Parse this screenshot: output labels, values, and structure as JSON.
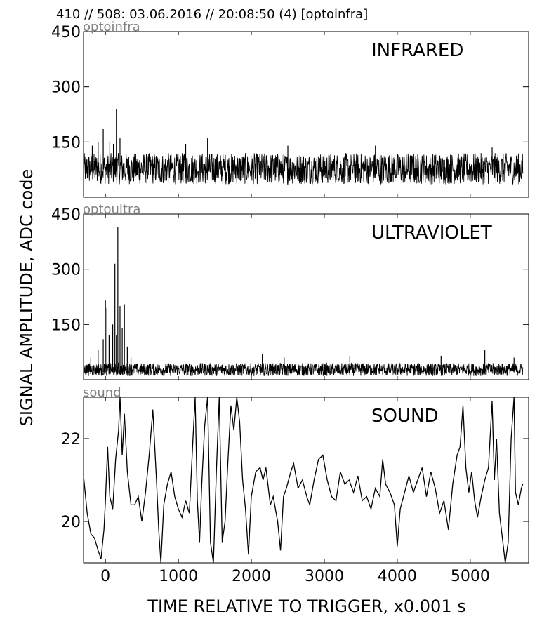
{
  "header": "410 // 508:   03.06.2016 // 20:08:50 (4)  [optoinfra]",
  "ylabel": "SIGNAL AMPLITUDE,  ADC code",
  "xlabel": "TIME RELATIVE TO TRIGGER,   x0.001 s",
  "x_tick_labels": [
    "0",
    "1000",
    "2000",
    "3000",
    "4000",
    "5000"
  ],
  "colors": {
    "trace": "#000000",
    "channel_label": "#808080",
    "axes": "#000000"
  },
  "chart_data": [
    {
      "type": "line",
      "channel": "optoinfra",
      "title": "INFRARED",
      "xlim": [
        -300,
        5800
      ],
      "ylim": [
        0,
        450
      ],
      "x_ticks": [
        0,
        1000,
        2000,
        3000,
        4000,
        5000
      ],
      "y_ticks": [
        150,
        300,
        450
      ],
      "y_tick_labels": [
        "150",
        "300",
        "450"
      ],
      "x_range": [
        -300,
        5720
      ],
      "baseline": 75,
      "noise_band": [
        35,
        120
      ],
      "spikes": [
        {
          "x": -180,
          "y": 140
        },
        {
          "x": -100,
          "y": 150
        },
        {
          "x": -30,
          "y": 185
        },
        {
          "x": 60,
          "y": 150
        },
        {
          "x": 110,
          "y": 145
        },
        {
          "x": 150,
          "y": 240
        },
        {
          "x": 200,
          "y": 160
        },
        {
          "x": 1100,
          "y": 145
        },
        {
          "x": 1400,
          "y": 160
        },
        {
          "x": 2500,
          "y": 140
        },
        {
          "x": 3700,
          "y": 140
        },
        {
          "x": 5300,
          "y": 135
        }
      ]
    },
    {
      "type": "line",
      "channel": "optoultra",
      "title": "ULTRAVIOLET",
      "xlim": [
        -300,
        5800
      ],
      "ylim": [
        0,
        450
      ],
      "x_ticks": [
        0,
        1000,
        2000,
        3000,
        4000,
        5000
      ],
      "y_ticks": [
        150,
        300,
        450
      ],
      "y_tick_labels": [
        "150",
        "300",
        "450"
      ],
      "x_range": [
        -300,
        5720
      ],
      "baseline": 20,
      "noise_band": [
        10,
        45
      ],
      "spikes": [
        {
          "x": -200,
          "y": 60
        },
        {
          "x": -100,
          "y": 80
        },
        {
          "x": -30,
          "y": 110
        },
        {
          "x": 0,
          "y": 215
        },
        {
          "x": 20,
          "y": 195
        },
        {
          "x": 50,
          "y": 120
        },
        {
          "x": 100,
          "y": 150
        },
        {
          "x": 130,
          "y": 315
        },
        {
          "x": 150,
          "y": 120
        },
        {
          "x": 170,
          "y": 415
        },
        {
          "x": 200,
          "y": 200
        },
        {
          "x": 230,
          "y": 140
        },
        {
          "x": 260,
          "y": 205
        },
        {
          "x": 300,
          "y": 90
        },
        {
          "x": 350,
          "y": 60
        },
        {
          "x": 2150,
          "y": 70
        },
        {
          "x": 2450,
          "y": 60
        },
        {
          "x": 3350,
          "y": 65
        },
        {
          "x": 4600,
          "y": 65
        },
        {
          "x": 5200,
          "y": 80
        },
        {
          "x": 5600,
          "y": 60
        }
      ]
    },
    {
      "type": "line",
      "channel": "sound",
      "title": "SOUND",
      "xlim": [
        -300,
        5800
      ],
      "ylim": [
        19,
        23
      ],
      "x_ticks": [
        0,
        1000,
        2000,
        3000,
        4000,
        5000
      ],
      "y_ticks": [
        20,
        22
      ],
      "y_tick_labels": [
        "20",
        "22"
      ],
      "points": [
        [
          -300,
          21.1
        ],
        [
          -250,
          20.2
        ],
        [
          -200,
          19.7
        ],
        [
          -150,
          19.6
        ],
        [
          -100,
          19.3
        ],
        [
          -60,
          19.1
        ],
        [
          -20,
          19.8
        ],
        [
          0,
          20.5
        ],
        [
          30,
          21.8
        ],
        [
          60,
          20.6
        ],
        [
          100,
          20.3
        ],
        [
          140,
          21.5
        ],
        [
          180,
          22.2
        ],
        [
          200,
          23.0
        ],
        [
          230,
          21.6
        ],
        [
          260,
          22.6
        ],
        [
          300,
          21.2
        ],
        [
          350,
          20.4
        ],
        [
          400,
          20.4
        ],
        [
          450,
          20.6
        ],
        [
          500,
          20.0
        ],
        [
          550,
          20.7
        ],
        [
          600,
          21.6
        ],
        [
          650,
          22.7
        ],
        [
          700,
          21.0
        ],
        [
          730,
          19.8
        ],
        [
          760,
          19.0
        ],
        [
          800,
          20.4
        ],
        [
          850,
          20.9
        ],
        [
          900,
          21.2
        ],
        [
          950,
          20.6
        ],
        [
          1000,
          20.3
        ],
        [
          1050,
          20.1
        ],
        [
          1100,
          20.5
        ],
        [
          1150,
          20.2
        ],
        [
          1200,
          22.0
        ],
        [
          1230,
          23.0
        ],
        [
          1260,
          20.5
        ],
        [
          1290,
          19.5
        ],
        [
          1320,
          20.9
        ],
        [
          1360,
          22.3
        ],
        [
          1400,
          23.0
        ],
        [
          1440,
          19.5
        ],
        [
          1480,
          19.0
        ],
        [
          1520,
          21.2
        ],
        [
          1560,
          23.0
        ],
        [
          1600,
          19.5
        ],
        [
          1640,
          20.0
        ],
        [
          1680,
          21.5
        ],
        [
          1720,
          22.8
        ],
        [
          1760,
          22.2
        ],
        [
          1800,
          23.0
        ],
        [
          1840,
          22.4
        ],
        [
          1880,
          21.0
        ],
        [
          1920,
          20.3
        ],
        [
          1960,
          19.2
        ],
        [
          2000,
          20.6
        ],
        [
          2060,
          21.2
        ],
        [
          2120,
          21.3
        ],
        [
          2160,
          21.0
        ],
        [
          2200,
          21.3
        ],
        [
          2260,
          20.4
        ],
        [
          2300,
          20.6
        ],
        [
          2360,
          20.0
        ],
        [
          2400,
          19.3
        ],
        [
          2440,
          20.6
        ],
        [
          2480,
          20.8
        ],
        [
          2540,
          21.2
        ],
        [
          2580,
          21.4
        ],
        [
          2640,
          20.8
        ],
        [
          2700,
          21.0
        ],
        [
          2760,
          20.6
        ],
        [
          2800,
          20.4
        ],
        [
          2860,
          21.0
        ],
        [
          2920,
          21.5
        ],
        [
          2980,
          21.6
        ],
        [
          3040,
          21.0
        ],
        [
          3100,
          20.6
        ],
        [
          3160,
          20.5
        ],
        [
          3220,
          21.2
        ],
        [
          3280,
          20.9
        ],
        [
          3340,
          21.0
        ],
        [
          3400,
          20.7
        ],
        [
          3460,
          21.1
        ],
        [
          3520,
          20.5
        ],
        [
          3580,
          20.6
        ],
        [
          3640,
          20.3
        ],
        [
          3700,
          20.8
        ],
        [
          3760,
          20.6
        ],
        [
          3800,
          21.5
        ],
        [
          3840,
          20.9
        ],
        [
          3900,
          20.7
        ],
        [
          3960,
          20.4
        ],
        [
          4000,
          19.4
        ],
        [
          4040,
          20.3
        ],
        [
          4100,
          20.7
        ],
        [
          4160,
          21.1
        ],
        [
          4220,
          20.7
        ],
        [
          4280,
          21.0
        ],
        [
          4340,
          21.3
        ],
        [
          4400,
          20.6
        ],
        [
          4460,
          21.2
        ],
        [
          4520,
          20.8
        ],
        [
          4580,
          20.2
        ],
        [
          4640,
          20.5
        ],
        [
          4700,
          19.8
        ],
        [
          4760,
          20.9
        ],
        [
          4820,
          21.6
        ],
        [
          4860,
          21.8
        ],
        [
          4900,
          22.8
        ],
        [
          4940,
          21.3
        ],
        [
          4980,
          20.7
        ],
        [
          5020,
          21.2
        ],
        [
          5060,
          20.5
        ],
        [
          5100,
          20.1
        ],
        [
          5150,
          20.6
        ],
        [
          5200,
          21.0
        ],
        [
          5250,
          21.3
        ],
        [
          5300,
          22.9
        ],
        [
          5330,
          21.0
        ],
        [
          5360,
          22.0
        ],
        [
          5400,
          20.2
        ],
        [
          5440,
          19.6
        ],
        [
          5480,
          19.0
        ],
        [
          5520,
          19.5
        ],
        [
          5560,
          22.0
        ],
        [
          5600,
          23.0
        ],
        [
          5620,
          20.7
        ],
        [
          5660,
          20.4
        ],
        [
          5700,
          20.8
        ],
        [
          5720,
          20.9
        ]
      ]
    }
  ]
}
